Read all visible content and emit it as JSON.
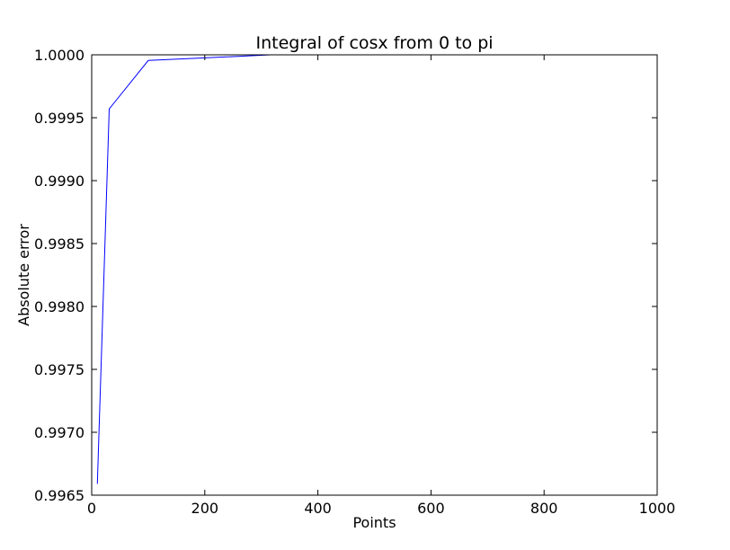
{
  "chart_data": {
    "type": "line",
    "title": "Integral of cosx from 0 to pi",
    "xlabel": "Points",
    "ylabel": "Absolute error",
    "xlim": [
      0,
      1000
    ],
    "ylim": [
      0.9965,
      1.0
    ],
    "xticks": [
      0,
      200,
      400,
      600,
      800,
      1000
    ],
    "xtick_labels": [
      "0",
      "200",
      "400",
      "600",
      "800",
      "1000"
    ],
    "yticks": [
      0.9965,
      0.997,
      0.9975,
      0.998,
      0.9985,
      0.999,
      0.9995,
      1.0
    ],
    "ytick_labels": [
      "0.9965",
      "0.9970",
      "0.9975",
      "0.9980",
      "0.9985",
      "0.9990",
      "0.9995",
      "1.0000"
    ],
    "grid": false,
    "series": [
      {
        "color": "#0000ff",
        "x": [
          10,
          31,
          100,
          316,
          1000
        ],
        "y": [
          0.99659,
          0.99957,
          0.999955,
          0.9999997,
          1.0
        ]
      }
    ]
  }
}
